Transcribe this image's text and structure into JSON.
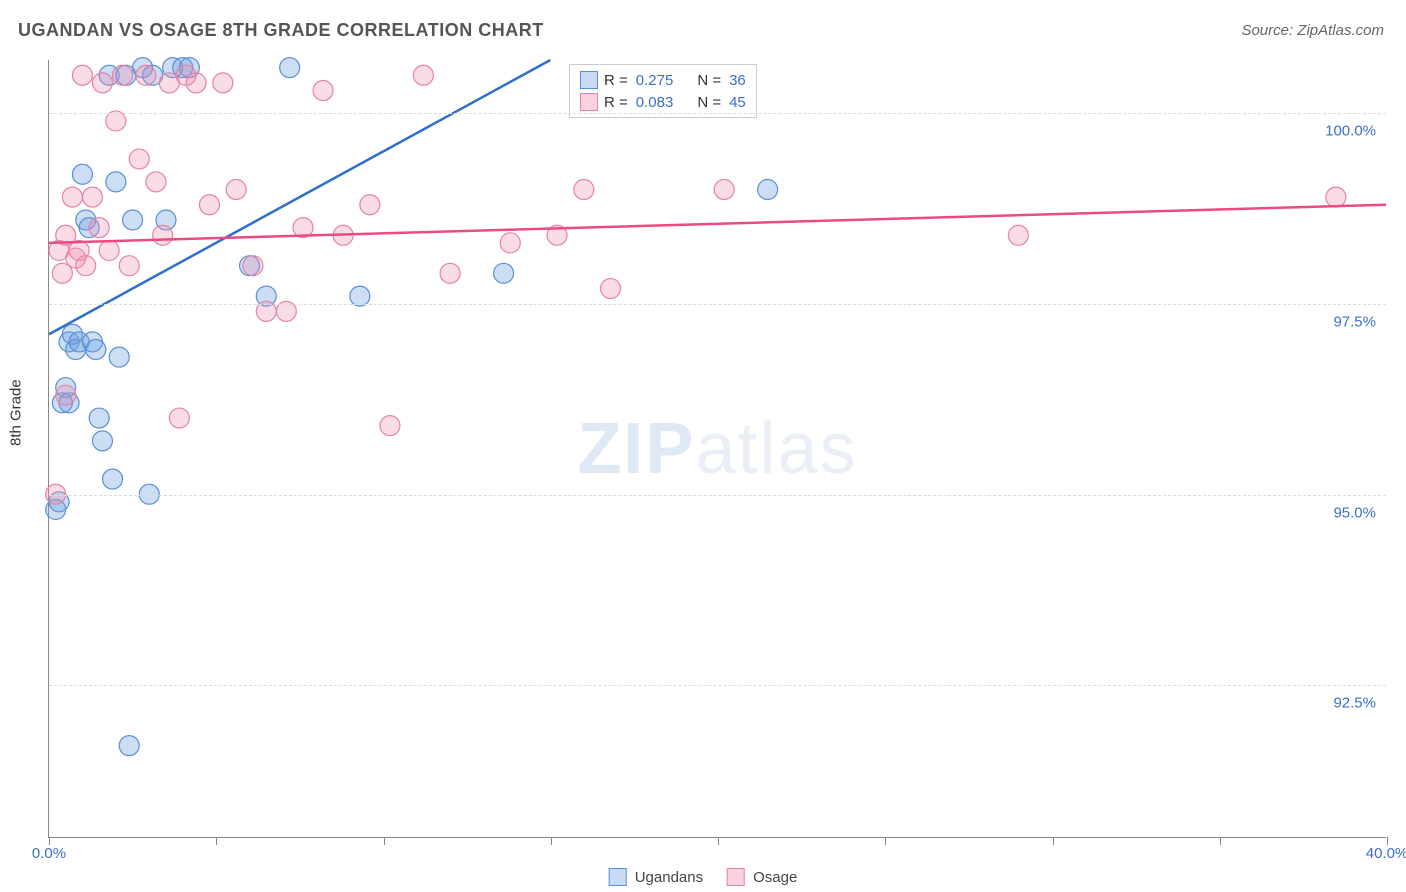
{
  "title": "UGANDAN VS OSAGE 8TH GRADE CORRELATION CHART",
  "source_label": "Source: ZipAtlas.com",
  "watermark_zip": "ZIP",
  "watermark_atlas": "atlas",
  "y_axis_title": "8th Grade",
  "chart": {
    "type": "scatter-with-regression",
    "xlim": [
      0,
      40
    ],
    "ylim": [
      90.5,
      100.7
    ],
    "xticks": [
      0,
      5,
      10,
      15,
      20,
      25,
      30,
      35,
      40
    ],
    "xticklabels": {
      "0": "0.0%",
      "40": "40.0%"
    },
    "yticks": [
      92.5,
      95.0,
      97.5,
      100.0
    ],
    "yticklabels": [
      "92.5%",
      "95.0%",
      "97.5%",
      "100.0%"
    ],
    "grid_color": "#dcdcdc",
    "background_color": "#ffffff",
    "axis_color": "#888888",
    "label_color": "#3b6fc9",
    "label_fontsize": 15,
    "title_fontsize": 18,
    "marker_radius": 10,
    "series": [
      {
        "name": "Ugandans",
        "color_fill": "rgba(110,160,224,0.35)",
        "color_stroke": "#5a8fd6",
        "line_color": "#2f6fd0",
        "R": "0.275",
        "N": "36",
        "regression": {
          "x0": 0,
          "y0": 97.1,
          "x1": 15,
          "y1": 100.7
        },
        "points": [
          [
            0.2,
            94.8
          ],
          [
            0.3,
            94.9
          ],
          [
            0.4,
            96.2
          ],
          [
            0.5,
            96.4
          ],
          [
            0.6,
            96.2
          ],
          [
            0.6,
            97.0
          ],
          [
            0.7,
            97.1
          ],
          [
            0.8,
            96.9
          ],
          [
            0.9,
            97.0
          ],
          [
            1.0,
            99.2
          ],
          [
            1.1,
            98.6
          ],
          [
            1.2,
            98.5
          ],
          [
            1.3,
            97.0
          ],
          [
            1.4,
            96.9
          ],
          [
            1.5,
            96.0
          ],
          [
            1.6,
            95.7
          ],
          [
            1.8,
            100.5
          ],
          [
            1.9,
            95.2
          ],
          [
            2.0,
            99.1
          ],
          [
            2.1,
            96.8
          ],
          [
            2.3,
            100.5
          ],
          [
            2.4,
            91.7
          ],
          [
            2.5,
            98.6
          ],
          [
            2.8,
            100.6
          ],
          [
            3.0,
            95.0
          ],
          [
            3.1,
            100.5
          ],
          [
            3.5,
            98.6
          ],
          [
            3.7,
            100.6
          ],
          [
            4.0,
            100.6
          ],
          [
            4.2,
            100.6
          ],
          [
            6.0,
            98.0
          ],
          [
            6.5,
            97.6
          ],
          [
            7.2,
            100.6
          ],
          [
            9.3,
            97.6
          ],
          [
            13.6,
            97.9
          ],
          [
            21.5,
            99.0
          ]
        ]
      },
      {
        "name": "Osage",
        "color_fill": "rgba(240,140,175,0.30)",
        "color_stroke": "#e781a6",
        "line_color": "#e94b86",
        "R": "0.083",
        "N": "45",
        "regression": {
          "x0": 0,
          "y0": 98.3,
          "x1": 40,
          "y1": 98.8
        },
        "points": [
          [
            0.2,
            95.0
          ],
          [
            0.3,
            98.2
          ],
          [
            0.4,
            97.9
          ],
          [
            0.5,
            98.4
          ],
          [
            0.5,
            96.3
          ],
          [
            0.7,
            98.9
          ],
          [
            0.8,
            98.1
          ],
          [
            0.9,
            98.2
          ],
          [
            1.0,
            100.5
          ],
          [
            1.1,
            98.0
          ],
          [
            1.3,
            98.9
          ],
          [
            1.5,
            98.5
          ],
          [
            1.6,
            100.4
          ],
          [
            1.8,
            98.2
          ],
          [
            2.0,
            99.9
          ],
          [
            2.2,
            100.5
          ],
          [
            2.4,
            98.0
          ],
          [
            2.7,
            99.4
          ],
          [
            2.9,
            100.5
          ],
          [
            3.2,
            99.1
          ],
          [
            3.4,
            98.4
          ],
          [
            3.6,
            100.4
          ],
          [
            3.9,
            96.0
          ],
          [
            4.1,
            100.5
          ],
          [
            4.4,
            100.4
          ],
          [
            4.8,
            98.8
          ],
          [
            5.2,
            100.4
          ],
          [
            5.6,
            99.0
          ],
          [
            6.1,
            98.0
          ],
          [
            6.5,
            97.4
          ],
          [
            7.1,
            97.4
          ],
          [
            7.6,
            98.5
          ],
          [
            8.2,
            100.3
          ],
          [
            8.8,
            98.4
          ],
          [
            9.6,
            98.8
          ],
          [
            10.2,
            95.9
          ],
          [
            11.2,
            100.5
          ],
          [
            12.0,
            97.9
          ],
          [
            13.8,
            98.3
          ],
          [
            15.2,
            98.4
          ],
          [
            16.0,
            99.0
          ],
          [
            16.8,
            97.7
          ],
          [
            20.2,
            99.0
          ],
          [
            29.0,
            98.4
          ],
          [
            38.5,
            98.9
          ]
        ]
      }
    ]
  },
  "legend_bottom": [
    "Ugandans",
    "Osage"
  ]
}
